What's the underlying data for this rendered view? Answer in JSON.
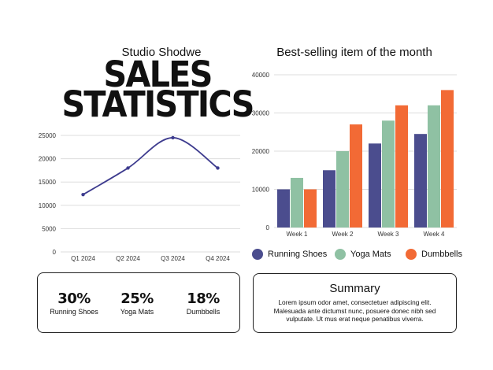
{
  "brand": "Studio Shodwe",
  "title_line1": "SALES",
  "title_line2": "STATISTICS",
  "colors": {
    "line": "#3d3b8e",
    "running_shoes": "#4b4d8e",
    "yoga_mats": "#8fc1a3",
    "dumbbells": "#f26a35",
    "grid": "#dddddd"
  },
  "chart_data": [
    {
      "type": "line",
      "title": "",
      "categories": [
        "Q1 2024",
        "Q2 2024",
        "Q3 2024",
        "Q4 2024"
      ],
      "series": [
        {
          "values": [
            12300,
            18000,
            24500,
            18000
          ]
        }
      ],
      "ylim": [
        0,
        25000
      ],
      "yticks": [
        0,
        5000,
        10000,
        15000,
        20000,
        25000
      ],
      "grid": true
    },
    {
      "type": "bar",
      "title": "Best-selling item of the month",
      "categories": [
        "Week 1",
        "Week 2",
        "Week 3",
        "Week 4"
      ],
      "series": [
        {
          "name": "Running Shoes",
          "values": [
            10000,
            15000,
            22000,
            24500
          ]
        },
        {
          "name": "Yoga Mats",
          "values": [
            13000,
            20000,
            28000,
            32000
          ]
        },
        {
          "name": "Dumbbells",
          "values": [
            10000,
            27000,
            32000,
            36000
          ]
        }
      ],
      "ylim": [
        0,
        40000
      ],
      "yticks": [
        0,
        10000,
        20000,
        30000,
        40000
      ],
      "grid": true,
      "legend": "bottom"
    }
  ],
  "stats": [
    {
      "value": "30%",
      "label": "Running Shoes"
    },
    {
      "value": "25%",
      "label": "Yoga Mats"
    },
    {
      "value": "18%",
      "label": "Dumbbells"
    }
  ],
  "summary": {
    "title": "Summary",
    "text": "Lorem ipsum odor amet, consectetuer adipiscing elit. Malesuada ante dictumst nunc, posuere donec nibh sed vulputate. Ut mus erat neque penatibus viverra."
  }
}
